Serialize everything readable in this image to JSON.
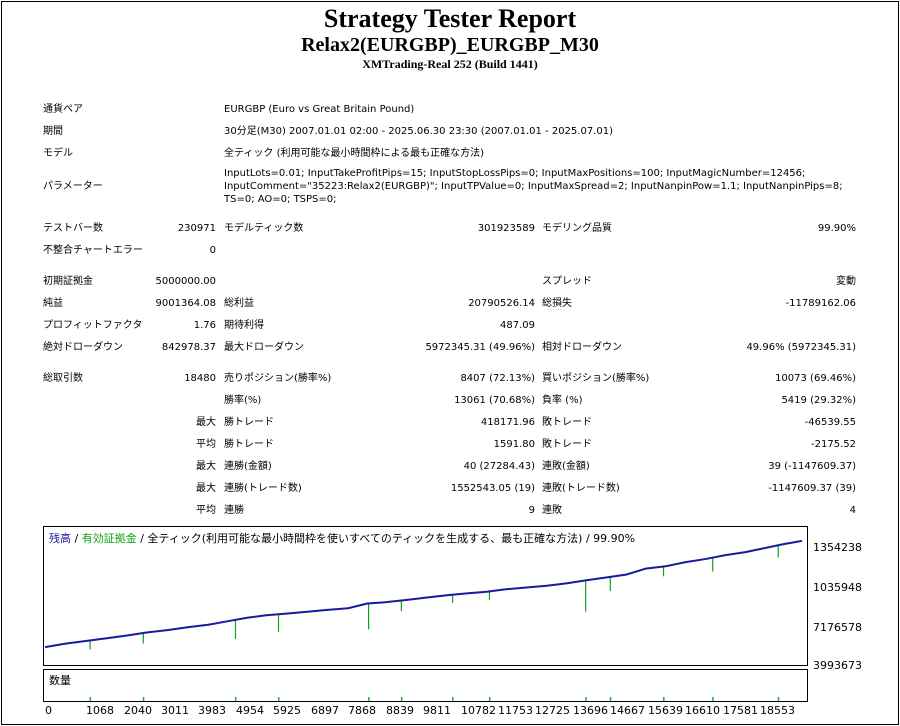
{
  "report": {
    "title": "Strategy Tester Report",
    "subtitle": "Relax2(EURGBP)_EURGBP_M30",
    "server": "XMTrading-Real 252 (Build 1441)"
  },
  "info": {
    "symbol_label": "通貨ペア",
    "symbol_value": "EURGBP (Euro vs Great Britain Pound)",
    "period_label": "期間",
    "period_value": "30分足(M30) 2007.01.01 02:00 - 2025.06.30 23:30 (2007.01.01 - 2025.07.01)",
    "model_label": "モデル",
    "model_value": "全ティック (利用可能な最小時間枠による最も正確な方法)",
    "params_label": "パラメーター",
    "params_value": "InputLots=0.01; InputTakeProfitPips=15; InputStopLossPips=0; InputMaxPositions=100; InputMagicNumber=12456; InputComment=\"35223:Relax2(EURGBP)\"; InputTPValue=0; InputMaxSpread=2; InputNanpinPow=1.1; InputNanpinPips=8; TS=0; AO=0; TSPS=0;"
  },
  "stats": {
    "bars_label": "テストバー数",
    "bars_value": "230971",
    "ticks_label": "モデルティック数",
    "ticks_value": "301923589",
    "quality_label": "モデリング品質",
    "quality_value": "99.90%",
    "mismatch_label": "不整合チャートエラー",
    "mismatch_value": "0",
    "deposit_label": "初期証拠金",
    "deposit_value": "5000000.00",
    "spread_label": "スプレッド",
    "spread_value": "変動",
    "net_label": "純益",
    "net_value": "9001364.08",
    "gross_profit_label": "総利益",
    "gross_profit_value": "20790526.14",
    "gross_loss_label": "総損失",
    "gross_loss_value": "-11789162.06",
    "pf_label": "プロフィットファクタ",
    "pf_value": "1.76",
    "expected_label": "期待利得",
    "expected_value": "487.09",
    "abs_dd_label": "絶対ドローダウン",
    "abs_dd_value": "842978.37",
    "max_dd_label": "最大ドローダウン",
    "max_dd_value": "5972345.31 (49.96%)",
    "rel_dd_label": "相対ドローダウン",
    "rel_dd_value": "49.96% (5972345.31)",
    "trades_label": "総取引数",
    "trades_value": "18480",
    "short_label": "売りポジション(勝率%)",
    "short_value": "8407 (72.13%)",
    "long_label": "買いポジション(勝率%)",
    "long_value": "10073 (69.46%)",
    "winrate_label": "勝率(%)",
    "winrate_value": "13061 (70.68%)",
    "lossrate_label": "負率 (%)",
    "lossrate_value": "5419 (29.32%)",
    "max_prefix": "最大",
    "avg_prefix": "平均",
    "max_win_label": "勝トレード",
    "max_win_value": "418171.96",
    "max_loss_label": "敗トレード",
    "max_loss_value": "-46539.55",
    "avg_win_label": "勝トレード",
    "avg_win_value": "1591.80",
    "avg_loss_label": "敗トレード",
    "avg_loss_value": "-2175.52",
    "consec_win_amt_label": "連勝(金額)",
    "consec_win_amt_value": "40 (27284.43)",
    "consec_loss_amt_label": "連敗(金額)",
    "consec_loss_amt_value": "39 (-1147609.37)",
    "consec_win_trd_label": "連勝(トレード数)",
    "consec_win_trd_value": "1552543.05 (19)",
    "consec_loss_trd_label": "連敗(トレード数)",
    "consec_loss_trd_value": "-1147609.37 (39)",
    "avg_consec_win_label": "連勝",
    "avg_consec_win_value": "9",
    "avg_consec_loss_label": "連敗",
    "avg_consec_loss_value": "4"
  },
  "chart_title": {
    "balance": "残高",
    "sep1": " / ",
    "equity": "有効証拠金",
    "sep2": " / ",
    "rest": "全ティック(利用可能な最小時間枠を使いすべてのティックを生成する、最も正確な方法) / 99.90%"
  },
  "volume_title": "数量",
  "colors": {
    "balance": "#1a1aa0",
    "equity": "#12a012",
    "volume": "#20b020"
  },
  "chart_data": {
    "type": "line",
    "y_ticks": [
      "1354238",
      "1035948",
      "7176578",
      "3993673"
    ],
    "x_ticks": [
      "0",
      "1068",
      "2040",
      "3011",
      "3983",
      "4954",
      "5925",
      "6897",
      "7868",
      "8839",
      "9811",
      "10782",
      "11753",
      "12725",
      "13696",
      "14667",
      "15639",
      "16610",
      "17581",
      "18553"
    ],
    "xlim": [
      0,
      18480
    ],
    "ylim": [
      3993673,
      14500000
    ],
    "series": [
      {
        "name": "残高",
        "x": [
          0,
          500,
          1068,
          1600,
          2040,
          2500,
          3011,
          3500,
          3983,
          4400,
          4954,
          5400,
          5925,
          6400,
          6897,
          7400,
          7868,
          8300,
          8839,
          9300,
          9811,
          10300,
          10782,
          11250,
          11753,
          12250,
          12725,
          13200,
          13696,
          14200,
          14667,
          15150,
          15639,
          16100,
          16610,
          17100,
          17581,
          18000,
          18480
        ],
        "values": [
          5000000,
          5300000,
          5550000,
          5800000,
          6000000,
          6250000,
          6450000,
          6700000,
          6900000,
          7150000,
          7500000,
          7700000,
          7850000,
          8000000,
          8150000,
          8300000,
          8700000,
          8800000,
          9000000,
          9200000,
          9400000,
          9550000,
          9700000,
          9900000,
          10050000,
          10200000,
          10400000,
          10650000,
          10900000,
          11150000,
          11650000,
          11850000,
          12200000,
          12450000,
          12800000,
          13050000,
          13400000,
          13700000,
          14001364
        ]
      },
      {
        "name": "有効証拠金",
        "dips": [
          [
            1100,
            4800000
          ],
          [
            2400,
            5300000
          ],
          [
            4650,
            5700000
          ],
          [
            5700,
            6300000
          ],
          [
            7900,
            6500000
          ],
          [
            8700,
            8050000
          ],
          [
            9950,
            8750000
          ],
          [
            10850,
            9000000
          ],
          [
            13200,
            8000000
          ],
          [
            13800,
            9750000
          ],
          [
            15100,
            11000000
          ],
          [
            16300,
            11400000
          ],
          [
            17900,
            12600000
          ]
        ]
      }
    ]
  }
}
